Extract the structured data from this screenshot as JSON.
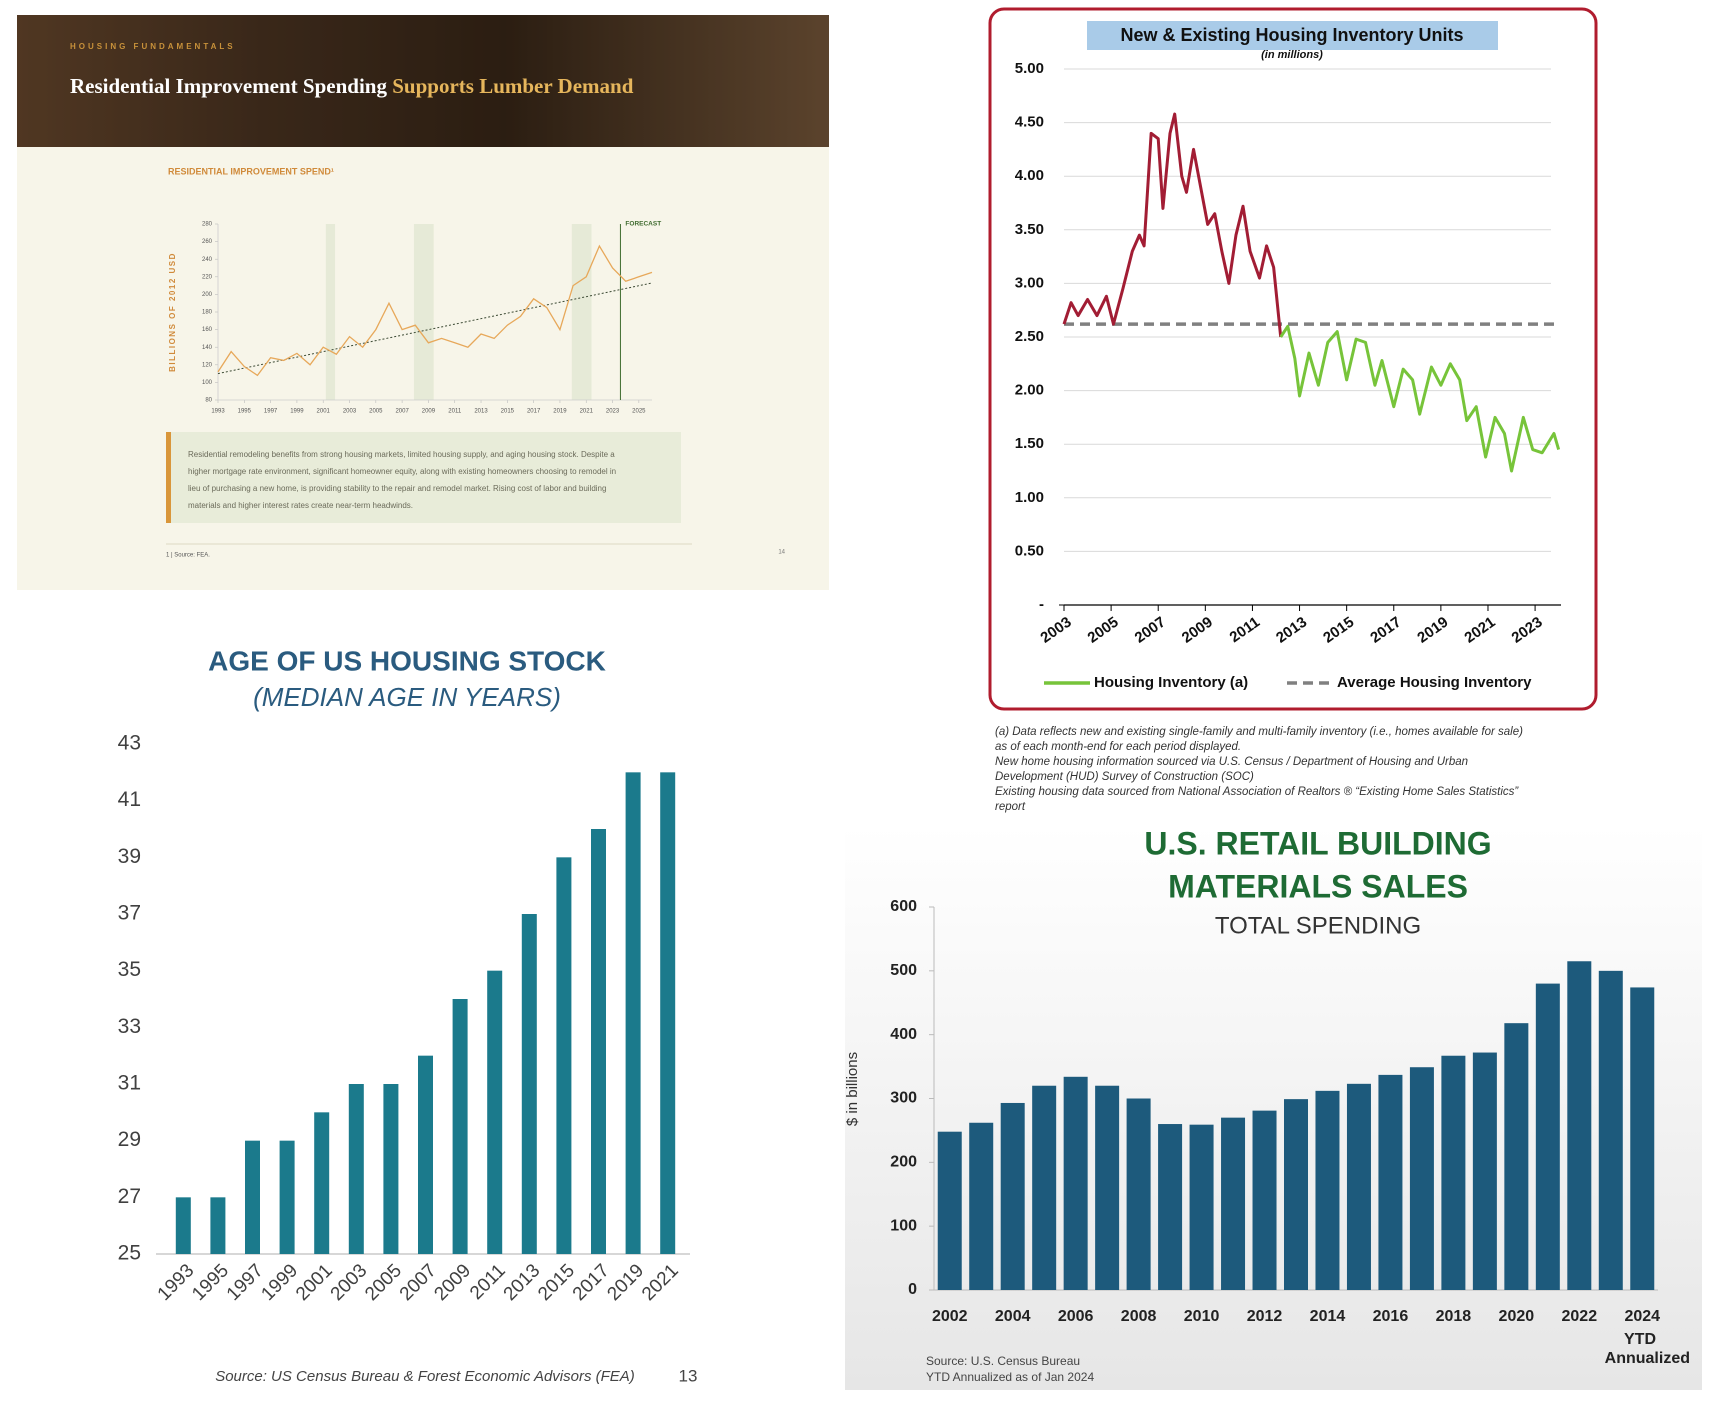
{
  "chart_data": [
    {
      "type": "line",
      "kicker": "HOUSING FUNDAMENTALS",
      "title": "Residential Improvement Spending",
      "title_highlight": "Supports Lumber Demand",
      "subtitle": "RESIDENTIAL IMPROVEMENT SPEND¹",
      "y_label": "BILLIONS OF 2012 USD",
      "x": [
        1993,
        1994,
        1995,
        1996,
        1997,
        1998,
        1999,
        2000,
        2001,
        2002,
        2003,
        2004,
        2005,
        2006,
        2007,
        2008,
        2009,
        2010,
        2011,
        2012,
        2013,
        2014,
        2015,
        2016,
        2017,
        2018,
        2019,
        2020,
        2021,
        2022,
        2023,
        2024,
        2025,
        2026
      ],
      "values": [
        112,
        135,
        118,
        108,
        128,
        125,
        133,
        120,
        140,
        132,
        152,
        140,
        160,
        190,
        160,
        165,
        145,
        150,
        145,
        140,
        155,
        150,
        165,
        175,
        195,
        185,
        160,
        210,
        220,
        255,
        230,
        215,
        220,
        225
      ],
      "color": "#e7a85a",
      "trend": {
        "x": [
          1993,
          2026
        ],
        "values": [
          110,
          213
        ],
        "color": "#3c4a34"
      },
      "shaded_ranges": [
        [
          2001.2,
          2001.9
        ],
        [
          2007.9,
          2009.4
        ],
        [
          2019.9,
          2021.4
        ]
      ],
      "forecast_x": 2023.6,
      "forecast_label": "FORECAST",
      "xlim": [
        1993,
        2026
      ],
      "ylim": [
        80,
        280
      ],
      "yticks": [
        80,
        100,
        120,
        140,
        160,
        180,
        200,
        220,
        240,
        260,
        280
      ],
      "xticks": [
        1993,
        1995,
        1997,
        1999,
        2001,
        2003,
        2005,
        2007,
        2009,
        2011,
        2013,
        2015,
        2017,
        2019,
        2021,
        2023,
        2025
      ],
      "body": [
        "Residential remodeling benefits from strong housing markets, limited housing supply, and aging housing stock. Despite a",
        "higher mortgage rate environment, significant homeowner equity, along with existing homeowners choosing to remodel in",
        "lieu of purchasing a new home, is providing stability to the repair and remodel market. Rising cost of labor and building",
        "materials and higher interest rates create near-term headwinds."
      ],
      "footnote": "1 | Source: FEA.",
      "page": "14"
    },
    {
      "type": "line",
      "title": "New & Existing Housing Inventory Units",
      "subtitle": "(in millions)",
      "x": [
        2003,
        2003.3,
        2003.6,
        2004,
        2004.4,
        2004.8,
        2005.1,
        2005.5,
        2005.9,
        2006.2,
        2006.4,
        2006.7,
        2007,
        2007.2,
        2007.5,
        2007.7,
        2008,
        2008.2,
        2008.5,
        2008.8,
        2009.1,
        2009.4,
        2009.7,
        2010,
        2010.3,
        2010.6,
        2010.9,
        2011.3,
        2011.6,
        2011.9,
        2012.2,
        2012.5,
        2012.8,
        2013,
        2013.4,
        2013.8,
        2014.2,
        2014.6,
        2015,
        2015.4,
        2015.8,
        2016.2,
        2016.5,
        2017,
        2017.4,
        2017.8,
        2018.1,
        2018.6,
        2019,
        2019.4,
        2019.8,
        2020.1,
        2020.5,
        2020.9,
        2021.3,
        2021.7,
        2022,
        2022.5,
        2022.9,
        2023.3,
        2023.8,
        2024
      ],
      "series": [
        {
          "name": "Housing Inventory (a)",
          "color": "#77c43a",
          "early_color": "#a21d34",
          "early_until": 2012.2,
          "values": [
            2.62,
            2.82,
            2.7,
            2.85,
            2.7,
            2.88,
            2.62,
            2.95,
            3.3,
            3.45,
            3.35,
            4.4,
            4.35,
            3.7,
            4.4,
            4.58,
            4.0,
            3.85,
            4.25,
            3.9,
            3.55,
            3.65,
            3.3,
            3.0,
            3.45,
            3.72,
            3.3,
            3.05,
            3.35,
            3.15,
            2.5,
            2.6,
            2.3,
            1.95,
            2.35,
            2.05,
            2.45,
            2.55,
            2.1,
            2.48,
            2.45,
            2.05,
            2.28,
            1.85,
            2.2,
            2.1,
            1.78,
            2.22,
            2.05,
            2.25,
            2.1,
            1.72,
            1.85,
            1.38,
            1.75,
            1.6,
            1.25,
            1.75,
            1.45,
            1.42,
            1.6,
            1.45
          ]
        },
        {
          "name": "Average Housing Inventory",
          "color": "#808080",
          "dashed": true,
          "x": [
            2003,
            2024
          ],
          "values": [
            2.62,
            2.62
          ]
        }
      ],
      "xlim": [
        2003,
        2024.1
      ],
      "ylim": [
        0,
        5
      ],
      "yticks": [
        {
          "value": 0,
          "label": "-"
        },
        {
          "value": 0.5,
          "label": "0.50"
        },
        {
          "value": 1,
          "label": "1.00"
        },
        {
          "value": 1.5,
          "label": "1.50"
        },
        {
          "value": 2,
          "label": "2.00"
        },
        {
          "value": 2.5,
          "label": "2.50"
        },
        {
          "value": 3,
          "label": "3.00"
        },
        {
          "value": 3.5,
          "label": "3.50"
        },
        {
          "value": 4,
          "label": "4.00"
        },
        {
          "value": 4.5,
          "label": "4.50"
        },
        {
          "value": 5,
          "label": "5.00"
        }
      ],
      "xticks": [
        2003,
        2005,
        2007,
        2009,
        2011,
        2013,
        2015,
        2017,
        2019,
        2021,
        2023
      ],
      "grid": true,
      "notes": [
        "(a) Data reflects new and existing single-family and multi-family inventory (i.e., homes available for sale)",
        "as of each month-end for each period displayed.",
        "New home housing information sourced via U.S. Census / Department of Housing and Urban",
        "Development (HUD) Survey of Construction (SOC)",
        "Existing housing data sourced from National Association of Realtors ® “Existing Home Sales Statistics”",
        "report"
      ]
    },
    {
      "type": "bar",
      "title": "AGE OF US HOUSING STOCK",
      "subtitle": "(MEDIAN AGE IN YEARS)",
      "categories": [
        "1993",
        "1995",
        "1997",
        "1999",
        "2001",
        "2003",
        "2005",
        "2007",
        "2009",
        "2011",
        "2013",
        "2015",
        "2017",
        "2019",
        "2021"
      ],
      "values": [
        27,
        27,
        29,
        29,
        30,
        31,
        31,
        32,
        34,
        35,
        37,
        39,
        40,
        42,
        42
      ],
      "color": "#1b7a8c",
      "ylim": [
        25,
        43
      ],
      "yticks": [
        25,
        27,
        29,
        31,
        33,
        35,
        37,
        39,
        41,
        43
      ],
      "source": "Source: US Census Bureau & Forest Economic Advisors (FEA)",
      "page": "13"
    },
    {
      "type": "bar",
      "title": [
        "U.S. RETAIL BUILDING",
        "MATERIALS SALES"
      ],
      "subtitle": "TOTAL SPENDING",
      "y_label": "$ in billions",
      "categories": [
        "2002",
        null,
        "2004",
        null,
        "2006",
        null,
        "2008",
        null,
        "2010",
        null,
        "2012",
        null,
        "2014",
        null,
        "2016",
        null,
        "2018",
        null,
        "2020",
        null,
        "2022",
        null,
        "2024"
      ],
      "values": [
        248,
        262,
        293,
        320,
        334,
        320,
        300,
        260,
        259,
        270,
        281,
        299,
        312,
        323,
        337,
        349,
        367,
        372,
        418,
        480,
        515,
        500,
        474
      ],
      "color": "#1d5a7c",
      "ylim": [
        0,
        600
      ],
      "yticks": [
        0,
        100,
        200,
        300,
        400,
        500,
        600
      ],
      "annotation": [
        "YTD",
        "Annualized"
      ],
      "source": [
        "Source: U.S. Census Bureau",
        "YTD Annualized as of Jan 2024"
      ]
    }
  ]
}
